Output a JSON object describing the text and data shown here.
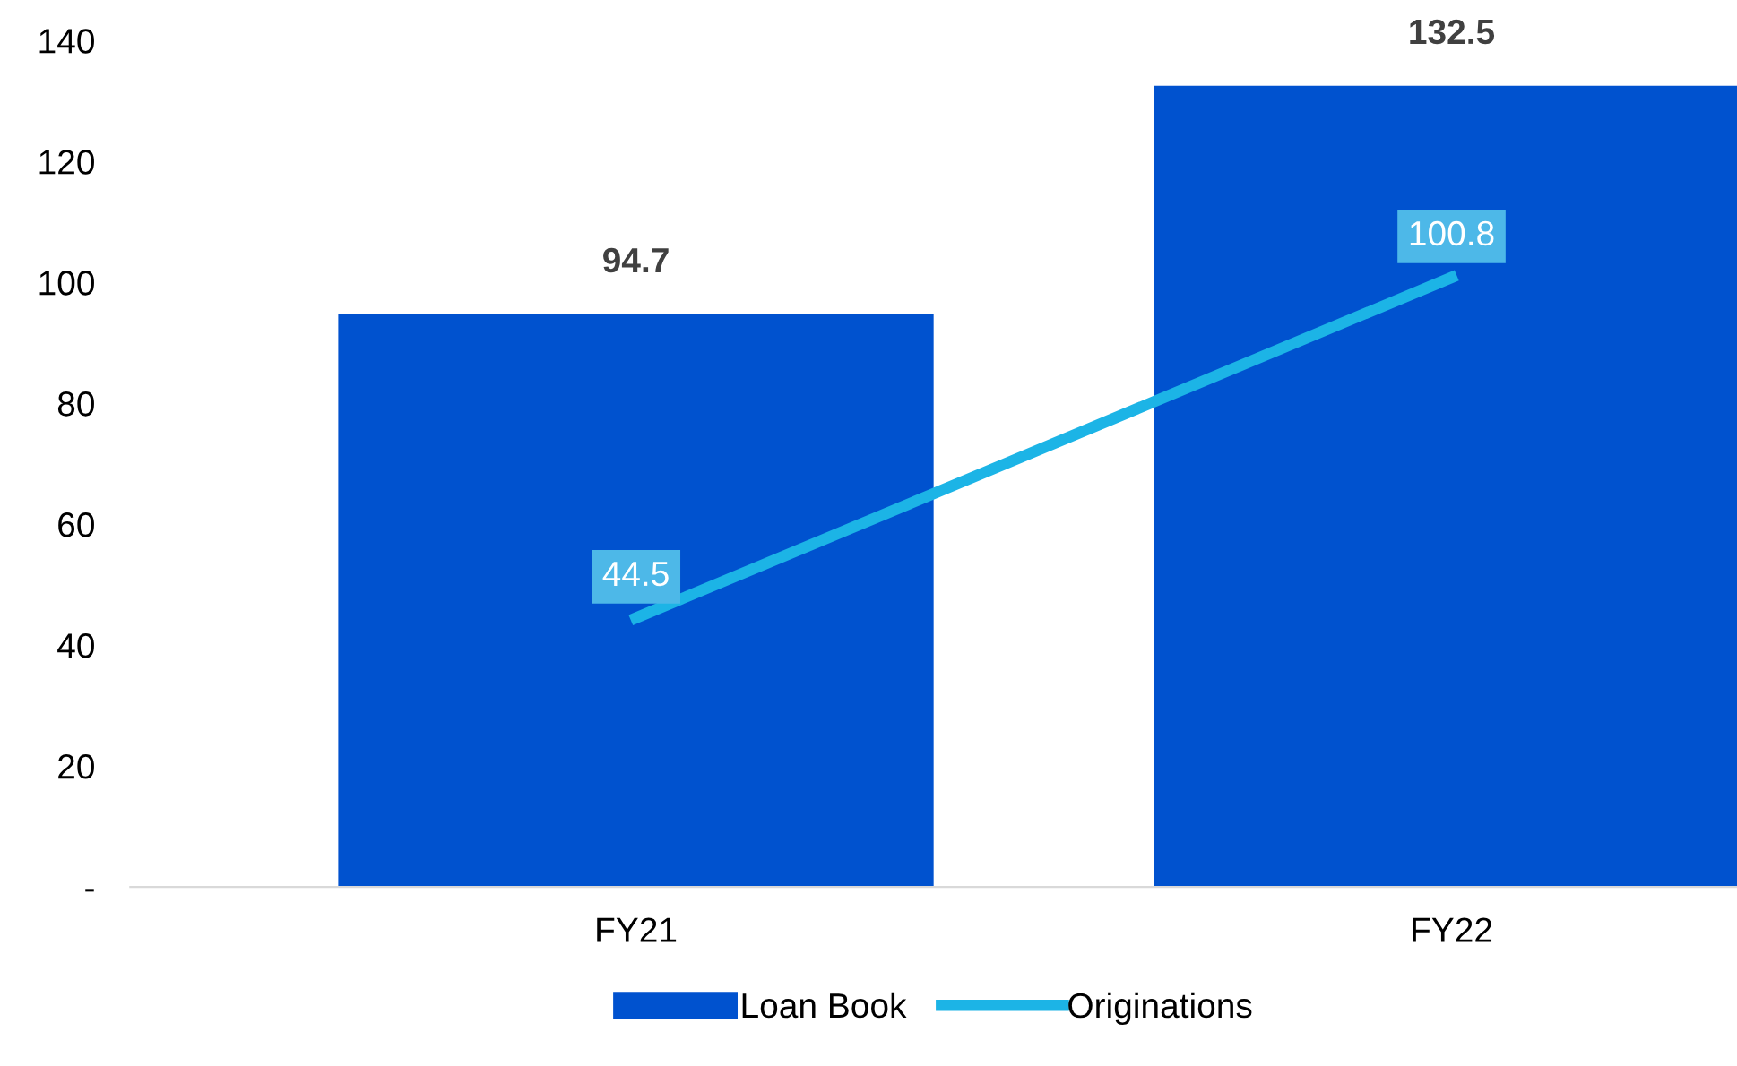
{
  "chart_data": {
    "type": "bar",
    "categories": [
      "FY21",
      "FY22"
    ],
    "series": [
      {
        "name": "Loan Book",
        "color": "#0052cf",
        "values": [
          94.7,
          132.5
        ]
      },
      {
        "name": "Originations",
        "type": "line",
        "color": "#1cb4e6",
        "values": [
          44.5,
          100.8
        ]
      }
    ],
    "ylim": [
      0,
      140
    ],
    "yticks": [
      {
        "value": 0,
        "label": "-"
      },
      20,
      40,
      60,
      80,
      100,
      120,
      140
    ],
    "data_labels": true,
    "legend": "bottom",
    "grid": false,
    "line_style": "solid"
  }
}
